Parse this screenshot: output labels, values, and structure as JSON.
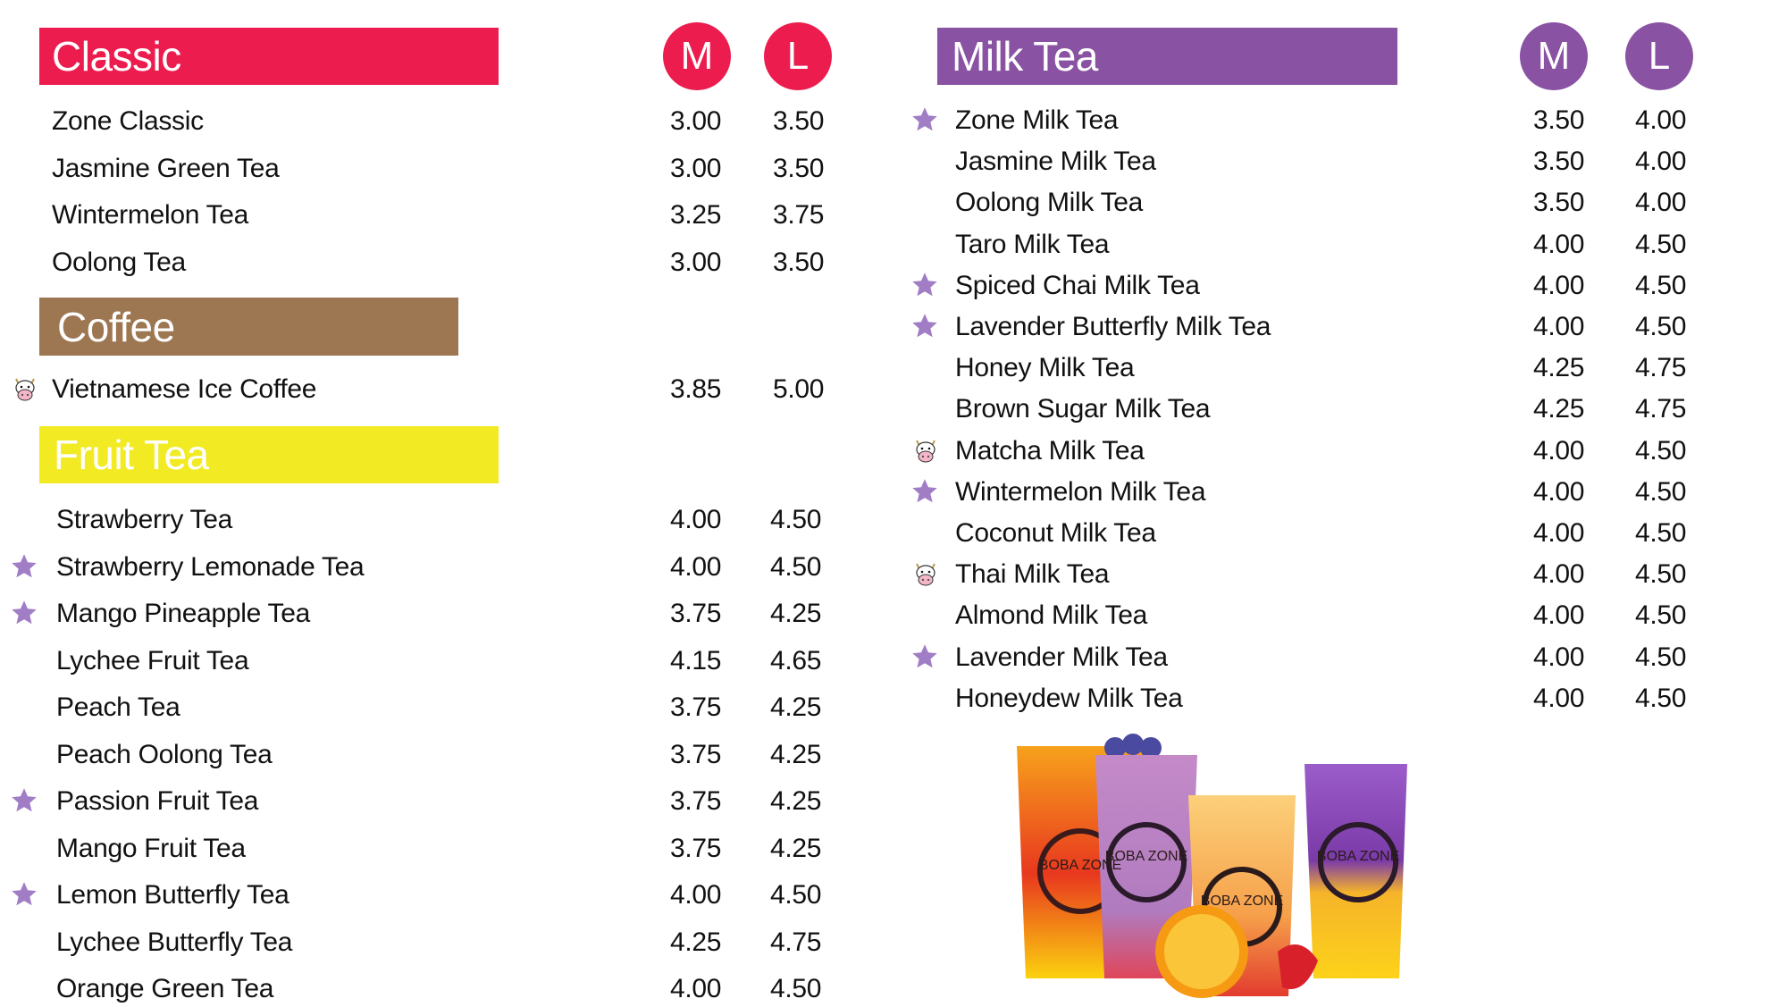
{
  "colors": {
    "classic": "#EC1C4E",
    "coffee": "#9D7652",
    "fruit": "#F2EA23",
    "milk": "#8952A3",
    "star": "#A17DC6"
  },
  "size_labels": {
    "medium": "M",
    "large": "L"
  },
  "sections": {
    "classic": {
      "title": "Classic",
      "items": [
        {
          "name": "Zone Classic",
          "m": "3.00",
          "l": "3.50",
          "icon": ""
        },
        {
          "name": "Jasmine Green Tea",
          "m": "3.00",
          "l": "3.50",
          "icon": ""
        },
        {
          "name": "Wintermelon Tea",
          "m": "3.25",
          "l": "3.75",
          "icon": ""
        },
        {
          "name": "Oolong Tea",
          "m": "3.00",
          "l": "3.50",
          "icon": ""
        }
      ]
    },
    "coffee": {
      "title": "Coffee",
      "items": [
        {
          "name": "Vietnamese Ice Coffee",
          "m": "3.85",
          "l": "5.00",
          "icon": "cow-icon"
        }
      ]
    },
    "fruit": {
      "title": "Fruit Tea",
      "items": [
        {
          "name": "Strawberry Tea",
          "m": "4.00",
          "l": "4.50",
          "icon": ""
        },
        {
          "name": "Strawberry Lemonade Tea",
          "m": "4.00",
          "l": "4.50",
          "icon": "star-icon"
        },
        {
          "name": "Mango Pineapple Tea",
          "m": "3.75",
          "l": "4.25",
          "icon": "star-icon"
        },
        {
          "name": "Lychee Fruit Tea",
          "m": "4.15",
          "l": "4.65",
          "icon": ""
        },
        {
          "name": "Peach Tea",
          "m": "3.75",
          "l": "4.25",
          "icon": ""
        },
        {
          "name": "Peach Oolong Tea",
          "m": "3.75",
          "l": "4.25",
          "icon": ""
        },
        {
          "name": "Passion Fruit Tea",
          "m": "3.75",
          "l": "4.25",
          "icon": "star-icon"
        },
        {
          "name": "Mango Fruit Tea",
          "m": "3.75",
          "l": "4.25",
          "icon": ""
        },
        {
          "name": "Lemon Butterfly Tea",
          "m": "4.00",
          "l": "4.50",
          "icon": "star-icon"
        },
        {
          "name": "Lychee Butterfly Tea",
          "m": "4.25",
          "l": "4.75",
          "icon": ""
        },
        {
          "name": "Orange Green Tea",
          "m": "4.00",
          "l": "4.50",
          "icon": ""
        }
      ]
    },
    "milk": {
      "title": "Milk Tea",
      "items": [
        {
          "name": "Zone Milk Tea",
          "m": "3.50",
          "l": "4.00",
          "icon": "star-icon"
        },
        {
          "name": "Jasmine Milk Tea",
          "m": "3.50",
          "l": "4.00",
          "icon": ""
        },
        {
          "name": "Oolong Milk Tea",
          "m": "3.50",
          "l": "4.00",
          "icon": ""
        },
        {
          "name": "Taro Milk Tea",
          "m": "4.00",
          "l": "4.50",
          "icon": ""
        },
        {
          "name": "Spiced Chai Milk Tea",
          "m": "4.00",
          "l": "4.50",
          "icon": "star-icon"
        },
        {
          "name": "Lavender Butterfly Milk Tea",
          "m": "4.00",
          "l": "4.50",
          "icon": "star-icon"
        },
        {
          "name": "Honey Milk Tea",
          "m": "4.25",
          "l": "4.75",
          "icon": ""
        },
        {
          "name": "Brown Sugar Milk Tea",
          "m": "4.25",
          "l": "4.75",
          "icon": ""
        },
        {
          "name": "Matcha Milk Tea",
          "m": "4.00",
          "l": "4.50",
          "icon": "cow-icon"
        },
        {
          "name": "Wintermelon Milk Tea",
          "m": "4.00",
          "l": "4.50",
          "icon": "star-icon"
        },
        {
          "name": "Coconut Milk Tea",
          "m": "4.00",
          "l": "4.50",
          "icon": ""
        },
        {
          "name": "Thai Milk Tea",
          "m": "4.00",
          "l": "4.50",
          "icon": "cow-icon"
        },
        {
          "name": "Almond Milk Tea",
          "m": "4.00",
          "l": "4.50",
          "icon": ""
        },
        {
          "name": "Lavender Milk Tea",
          "m": "4.00",
          "l": "4.50",
          "icon": "star-icon"
        },
        {
          "name": "Honeydew Milk Tea",
          "m": "4.00",
          "l": "4.50",
          "icon": ""
        }
      ]
    }
  },
  "drinks_photo": {
    "cup_logo": "BOBA ZONE"
  }
}
